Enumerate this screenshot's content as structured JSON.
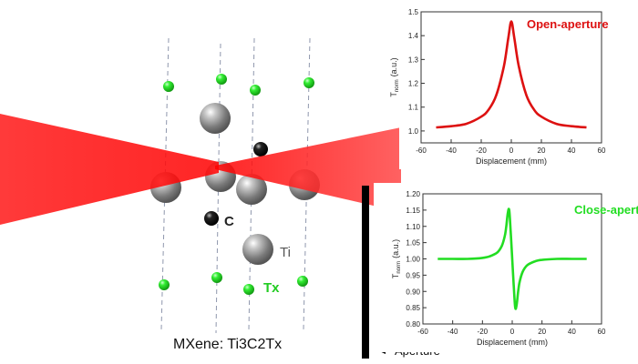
{
  "figure": {
    "structure_label": "MXene: Ti3C2Tx",
    "atom_labels": {
      "carbon": "C",
      "titanium": "Ti",
      "termination": "Tx"
    },
    "aperture_label": "Aperture",
    "colors": {
      "beam": "#ff0000",
      "titanium": "#8c8c8c",
      "carbon": "#000000",
      "termination": "#22dd22",
      "open_curve": "#dd1111",
      "close_curve": "#22dd22"
    }
  },
  "chart_data": [
    {
      "type": "line",
      "title": "Open-aperture",
      "xlabel": "Displacement (mm)",
      "ylabel": "T_norm (a.u.)",
      "ylabel_main": "T",
      "ylabel_sub": "norm",
      "ylabel_unit": "(a.u.)",
      "xlim": [
        -60,
        60
      ],
      "ylim": [
        0.95,
        1.5
      ],
      "xticks": [
        "-60",
        "-40",
        "-20",
        "0",
        "20",
        "40",
        "60"
      ],
      "yticks": [
        "1.0",
        "1.1",
        "1.2",
        "1.3",
        "1.4",
        "1.5"
      ],
      "x": [
        -50,
        -40,
        -30,
        -20,
        -15,
        -10,
        -5,
        -2,
        0,
        2,
        5,
        10,
        15,
        20,
        30,
        40,
        50
      ],
      "y": [
        1.015,
        1.02,
        1.03,
        1.06,
        1.09,
        1.15,
        1.27,
        1.39,
        1.46,
        1.39,
        1.27,
        1.15,
        1.09,
        1.06,
        1.03,
        1.02,
        1.015
      ]
    },
    {
      "type": "line",
      "title": "Close-aperture",
      "xlabel": "Displacement (mm)",
      "ylabel": "T_norm (a.u.)",
      "ylabel_main": "T",
      "ylabel_sub": "norm",
      "ylabel_unit": "(a.u.)",
      "xlim": [
        -60,
        60
      ],
      "ylim": [
        0.8,
        1.2
      ],
      "xticks": [
        "-60",
        "-40",
        "-20",
        "0",
        "20",
        "40",
        "60"
      ],
      "yticks": [
        "0.80",
        "0.85",
        "0.90",
        "0.95",
        "1.00",
        "1.05",
        "1.10",
        "1.15",
        "1.20"
      ],
      "x": [
        -50,
        -40,
        -30,
        -20,
        -15,
        -10,
        -7,
        -5,
        -4,
        -3,
        -2,
        -1,
        0,
        1,
        2,
        3,
        4,
        5,
        7,
        10,
        15,
        20,
        30,
        40,
        50
      ],
      "y": [
        1.0,
        1.0,
        1.0,
        1.003,
        1.008,
        1.02,
        1.04,
        1.07,
        1.1,
        1.14,
        1.15,
        1.08,
        1.0,
        0.92,
        0.85,
        0.86,
        0.9,
        0.93,
        0.96,
        0.98,
        0.992,
        0.997,
        1.0,
        1.0,
        1.0
      ]
    }
  ]
}
